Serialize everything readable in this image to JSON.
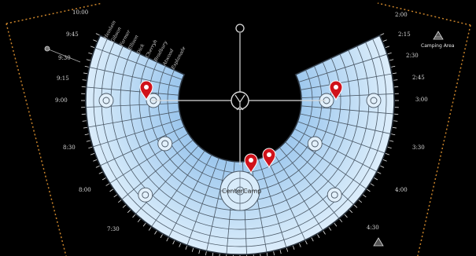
{
  "map": {
    "background": "#000000",
    "fill_color": "#cfe6f8",
    "line_color": "#3d4a57",
    "fence_color": "#c9832a",
    "pin_color": "#d0121b",
    "center_camp": {
      "label_left": "Center",
      "label_right": "Camp",
      "icon": "center-camp-circle-icon"
    },
    "camping_area": {
      "label": "Camping Area",
      "icon": "camping-triangle-icon"
    },
    "man": {
      "icon": "man-figure-icon"
    },
    "temple": {
      "icon": "temple-circle-icon"
    },
    "left_times": [
      "10:00",
      "9:45",
      "9:30",
      "9:15",
      "9:00",
      "8:30",
      "8:00",
      "7:30"
    ],
    "right_times": [
      "2:00",
      "2:15",
      "2:30",
      "2:45",
      "3:00",
      "3:30",
      "4:00",
      "4:30"
    ],
    "street_names": [
      "Esplanade",
      "Atwood",
      "Bradbury",
      "Cherryh",
      "Dick",
      "Ellison",
      "Farmer",
      "Gibson",
      "Heinlein"
    ],
    "pins": [
      {
        "name": "pin-9-00",
        "icon": "map-pin-icon"
      },
      {
        "name": "pin-3-00",
        "icon": "map-pin-icon"
      },
      {
        "name": "pin-center-camp-1",
        "icon": "map-pin-icon"
      },
      {
        "name": "pin-center-camp-2",
        "icon": "map-pin-icon"
      }
    ]
  }
}
